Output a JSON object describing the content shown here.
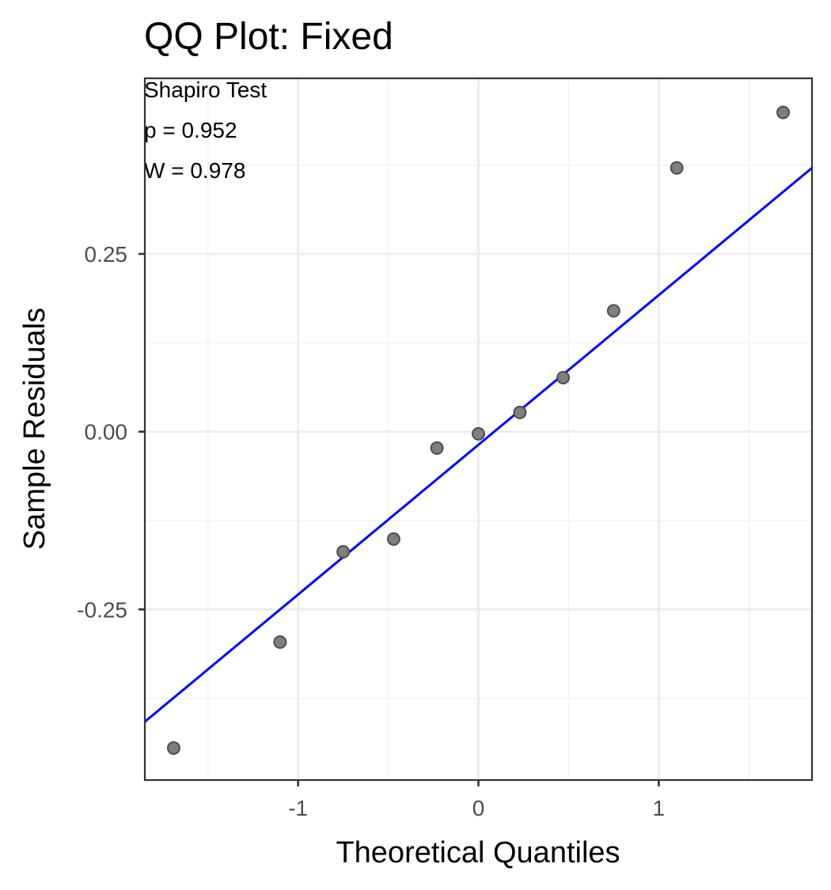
{
  "chart_data": {
    "type": "scatter",
    "title": "QQ Plot: Fixed",
    "xlabel": "Theoretical Quantiles",
    "ylabel": "Sample Residuals",
    "xlim": [
      -1.85,
      1.85
    ],
    "ylim": [
      -0.49,
      0.497
    ],
    "x_major_ticks": [
      -1,
      0,
      1
    ],
    "x_minor_ticks": [
      -1.5,
      -0.5,
      0.5,
      1.5
    ],
    "y_major_ticks": [
      -0.25,
      0.0,
      0.25
    ],
    "y_minor_ticks": [
      -0.375,
      -0.125,
      0.125,
      0.375
    ],
    "x_tick_labels": [
      "-1",
      "0",
      "1"
    ],
    "y_tick_labels": [
      "-0.25",
      "0.00",
      "0.25"
    ],
    "grid": true,
    "annotations": [
      "Shapiro Test",
      "p = 0.952",
      "W = 0.978"
    ],
    "points": [
      {
        "x": -1.69,
        "y": -0.445
      },
      {
        "x": -1.1,
        "y": -0.296
      },
      {
        "x": -0.75,
        "y": -0.169
      },
      {
        "x": -0.47,
        "y": -0.151
      },
      {
        "x": -0.23,
        "y": -0.023
      },
      {
        "x": 0.0,
        "y": -0.003
      },
      {
        "x": 0.23,
        "y": 0.027
      },
      {
        "x": 0.47,
        "y": 0.076
      },
      {
        "x": 0.75,
        "y": 0.17
      },
      {
        "x": 1.1,
        "y": 0.371
      },
      {
        "x": 1.69,
        "y": 0.449
      }
    ],
    "reference_line": {
      "x": [
        -1.85,
        1.85
      ],
      "y": [
        -0.408,
        0.371
      ]
    },
    "colors": {
      "points": "#7f7f7f",
      "point_outline": "#4d4d4d",
      "reference_line": "#0000ff"
    }
  }
}
